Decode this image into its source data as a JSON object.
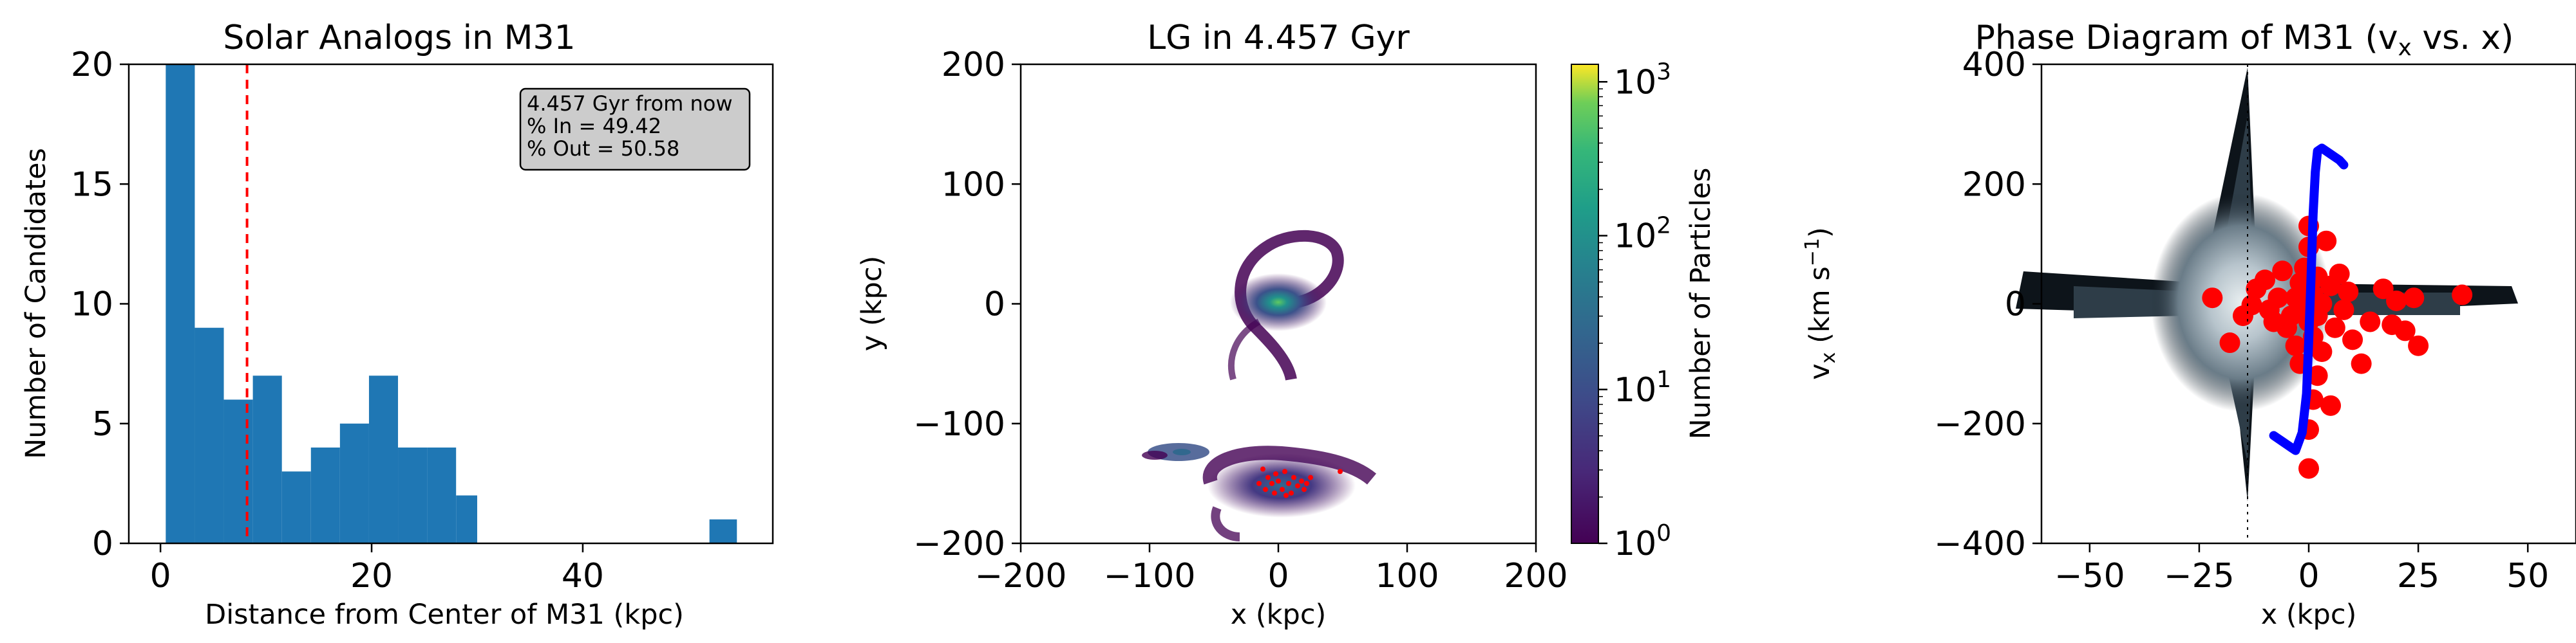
{
  "chart_data": [
    {
      "type": "bar",
      "title": "Solar Analogs in M31",
      "xlabel": "Distance from Center of M31 (kpc)",
      "ylabel": "Number of Candidates",
      "xlim": [
        -3,
        58
      ],
      "ylim": [
        0,
        20
      ],
      "xticks": [
        0,
        20,
        40
      ],
      "yticks": [
        0,
        5,
        10,
        15,
        20
      ],
      "bins": [
        {
          "x0": 0.5,
          "x1": 3.25,
          "count": 20
        },
        {
          "x0": 3.25,
          "x1": 6.0,
          "count": 9
        },
        {
          "x0": 6.0,
          "x1": 8.75,
          "count": 6
        },
        {
          "x0": 8.75,
          "x1": 11.5,
          "count": 7
        },
        {
          "x0": 11.5,
          "x1": 14.25,
          "count": 3
        },
        {
          "x0": 14.25,
          "x1": 17.0,
          "count": 4
        },
        {
          "x0": 17.0,
          "x1": 19.75,
          "count": 5
        },
        {
          "x0": 19.75,
          "x1": 22.5,
          "count": 7
        },
        {
          "x0": 22.5,
          "x1": 25.25,
          "count": 4
        },
        {
          "x0": 25.25,
          "x1": 28.0,
          "count": 4
        },
        {
          "x0": 28.0,
          "x1": 30.0,
          "count": 2
        },
        {
          "x0": 52.0,
          "x1": 54.6,
          "count": 1
        }
      ],
      "vline": {
        "x": 8.2,
        "color": "#ff0000"
      },
      "bar_color": "#1f77b4",
      "annotation": {
        "lines": [
          "4.457 Gyr from now",
          "% In = 49.42",
          "% Out = 50.58"
        ],
        "placement": "top-right"
      }
    },
    {
      "type": "heatmap",
      "title": "LG in 4.457 Gyr",
      "xlabel": "x (kpc)",
      "ylabel": "y (kpc)",
      "xlim": [
        -200,
        200
      ],
      "ylim": [
        -200,
        200
      ],
      "xticks": [
        -200,
        -100,
        0,
        100,
        200
      ],
      "yticks": [
        -200,
        -100,
        0,
        100,
        200
      ],
      "colorbar": {
        "label": "Number of Particles",
        "scale": "log",
        "range": [
          1,
          1300
        ],
        "ticks": [
          "10^0",
          "10^1",
          "10^2",
          "10^3"
        ]
      },
      "structures": [
        {
          "name": "galaxy-upper",
          "center": [
            0,
            0
          ]
        },
        {
          "name": "galaxy-lower",
          "center": [
            0,
            -150
          ]
        },
        {
          "name": "clump-left",
          "center": [
            -80,
            -125
          ]
        }
      ],
      "highlight_points_color": "#ff0000"
    },
    {
      "type": "scatter",
      "title": "Phase Diagram of M31 (v",
      "title_sub": "x",
      "title_end": " vs. x)",
      "xlabel": "x (kpc)",
      "ylabel": "v",
      "ylabel_sub": "x",
      "ylabel_units": " (km s",
      "ylabel_sup": "−1",
      "ylabel_end": ")",
      "xlim": [
        -61,
        61
      ],
      "ylim": [
        -400,
        400
      ],
      "xticks": [
        -50,
        -25,
        0,
        25,
        50
      ],
      "yticks": [
        -400,
        -200,
        0,
        200,
        400
      ],
      "highlight_points": [
        [
          -22,
          10
        ],
        [
          -18,
          -65
        ],
        [
          -15,
          -20
        ],
        [
          -13,
          -2
        ],
        [
          -12,
          25
        ],
        [
          -10,
          40
        ],
        [
          -9,
          -10
        ],
        [
          -8,
          -30
        ],
        [
          -7,
          10
        ],
        [
          -6,
          55
        ],
        [
          -5,
          -40
        ],
        [
          -4,
          -20
        ],
        [
          -3,
          10
        ],
        [
          -3,
          -70
        ],
        [
          -2,
          35
        ],
        [
          -2,
          -100
        ],
        [
          -1,
          -10
        ],
        [
          -1,
          60
        ],
        [
          0,
          130
        ],
        [
          0,
          95
        ],
        [
          0,
          -30
        ],
        [
          0,
          -210
        ],
        [
          0,
          -275
        ],
        [
          1,
          15
        ],
        [
          1,
          -55
        ],
        [
          1,
          -160
        ],
        [
          2,
          45
        ],
        [
          2,
          -20
        ],
        [
          2,
          -120
        ],
        [
          3,
          0
        ],
        [
          3,
          -80
        ],
        [
          4,
          105
        ],
        [
          5,
          30
        ],
        [
          5,
          -170
        ],
        [
          6,
          -40
        ],
        [
          7,
          50
        ],
        [
          8,
          -10
        ],
        [
          9,
          20
        ],
        [
          10,
          -60
        ],
        [
          12,
          -100
        ],
        [
          14,
          -30
        ],
        [
          17,
          25
        ],
        [
          19,
          -35
        ],
        [
          20,
          5
        ],
        [
          22,
          -45
        ],
        [
          24,
          10
        ],
        [
          25,
          -70
        ],
        [
          35,
          15
        ]
      ],
      "highlight_color": "#ff0000",
      "curve_color": "#0000ff",
      "curve": [
        [
          -8,
          -220
        ],
        [
          -6,
          -230
        ],
        [
          -3,
          -245
        ],
        [
          -1.5,
          -215
        ],
        [
          -0.5,
          -150
        ],
        [
          0,
          -60
        ],
        [
          0.5,
          40
        ],
        [
          1,
          150
        ],
        [
          1.5,
          220
        ],
        [
          2,
          255
        ],
        [
          3,
          260
        ],
        [
          5,
          250
        ],
        [
          7,
          240
        ],
        [
          8,
          232
        ]
      ]
    }
  ]
}
